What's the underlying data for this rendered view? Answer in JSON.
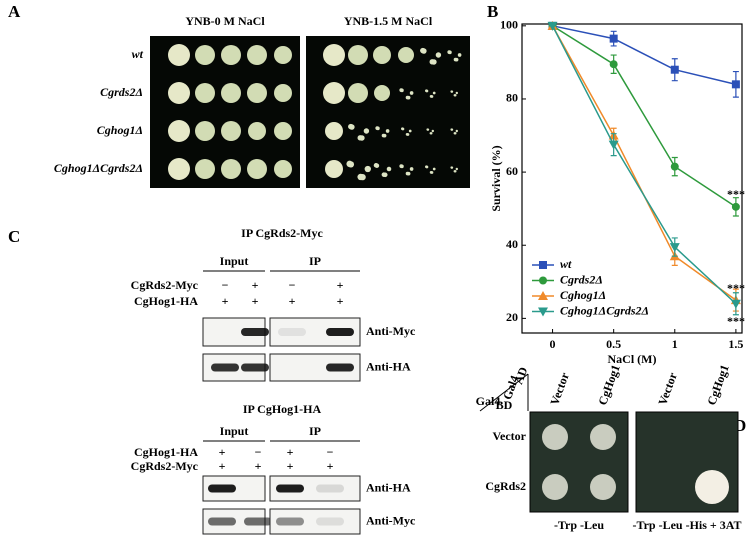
{
  "panel_a": {
    "label": "A",
    "headers": [
      "YNB-0 M NaCl",
      "YNB-1.5 M NaCl"
    ],
    "strains": [
      "wt",
      "Cgrds2Δ",
      "Cghog1Δ",
      "Cghog1ΔCgrds2Δ"
    ]
  },
  "chart_data": {
    "type": "line",
    "panel_label": "B",
    "x": [
      0,
      0.5,
      1,
      1.5
    ],
    "xlim": [
      -0.25,
      1.55
    ],
    "xticks": [
      0,
      0.5,
      1,
      1.5
    ],
    "ylim": [
      16,
      100.5
    ],
    "yticks": [
      20,
      40,
      60,
      80,
      100
    ],
    "xlabel": "NaCl (M)",
    "ylabel": "Survival (%)",
    "legend": "lower-left",
    "annotations": [
      "***",
      "***",
      "***"
    ],
    "series": [
      {
        "name": "wt",
        "color": "#2b50b8",
        "marker": "square",
        "values": [
          100,
          96.5,
          88,
          84
        ],
        "errors": [
          0,
          2,
          3,
          3.5
        ]
      },
      {
        "name": "Cgrds2Δ",
        "color": "#2e9a3c",
        "marker": "circle",
        "values": [
          100,
          89.5,
          61.5,
          50.5
        ],
        "errors": [
          0,
          2.5,
          2.5,
          2.5
        ]
      },
      {
        "name": "Cghog1Δ",
        "color": "#f08a2a",
        "marker": "triangle-up",
        "values": [
          100,
          70,
          37,
          25
        ],
        "errors": [
          0,
          2,
          2.5,
          3
        ]
      },
      {
        "name": "Cghog1ΔCgrds2Δ",
        "color": "#2a9a8c",
        "marker": "triangle-down",
        "values": [
          100,
          67.5,
          39.5,
          24
        ],
        "errors": [
          0,
          3,
          2.5,
          3
        ]
      }
    ]
  },
  "panel_c": {
    "label": "C",
    "blots": [
      {
        "title": "IP CgRds2-Myc",
        "groups": [
          "Input",
          "IP"
        ],
        "rows": [
          {
            "label": "CgRds2-Myc",
            "signs": [
              "−",
              "+",
              "−",
              "+"
            ]
          },
          {
            "label": "CgHog1-HA",
            "signs": [
              "+",
              "+",
              "+",
              "+"
            ]
          }
        ],
        "antibodies": [
          "Anti-Myc",
          "Anti-HA"
        ]
      },
      {
        "title": "IP CgHog1-HA",
        "groups": [
          "Input",
          "IP"
        ],
        "rows": [
          {
            "label": "CgHog1-HA",
            "signs": [
              "+",
              "−",
              "+",
              "−"
            ]
          },
          {
            "label": "CgRds2-Myc",
            "signs": [
              "+",
              "+",
              "+",
              "+"
            ]
          }
        ],
        "antibodies": [
          "Anti-HA",
          "Anti-Myc"
        ]
      }
    ]
  },
  "panel_d": {
    "label": "D",
    "corner": {
      "column": "Gal4",
      "column_sub": "AD",
      "row": "Gal4",
      "row_sub": "BD"
    },
    "columns": [
      "Vector",
      "CgHog1",
      "Vector",
      "CgHog1"
    ],
    "rows": [
      "Vector",
      "CgRds2"
    ],
    "media": [
      "-Trp -Leu",
      "-Trp -Leu -His + 3AT"
    ]
  }
}
